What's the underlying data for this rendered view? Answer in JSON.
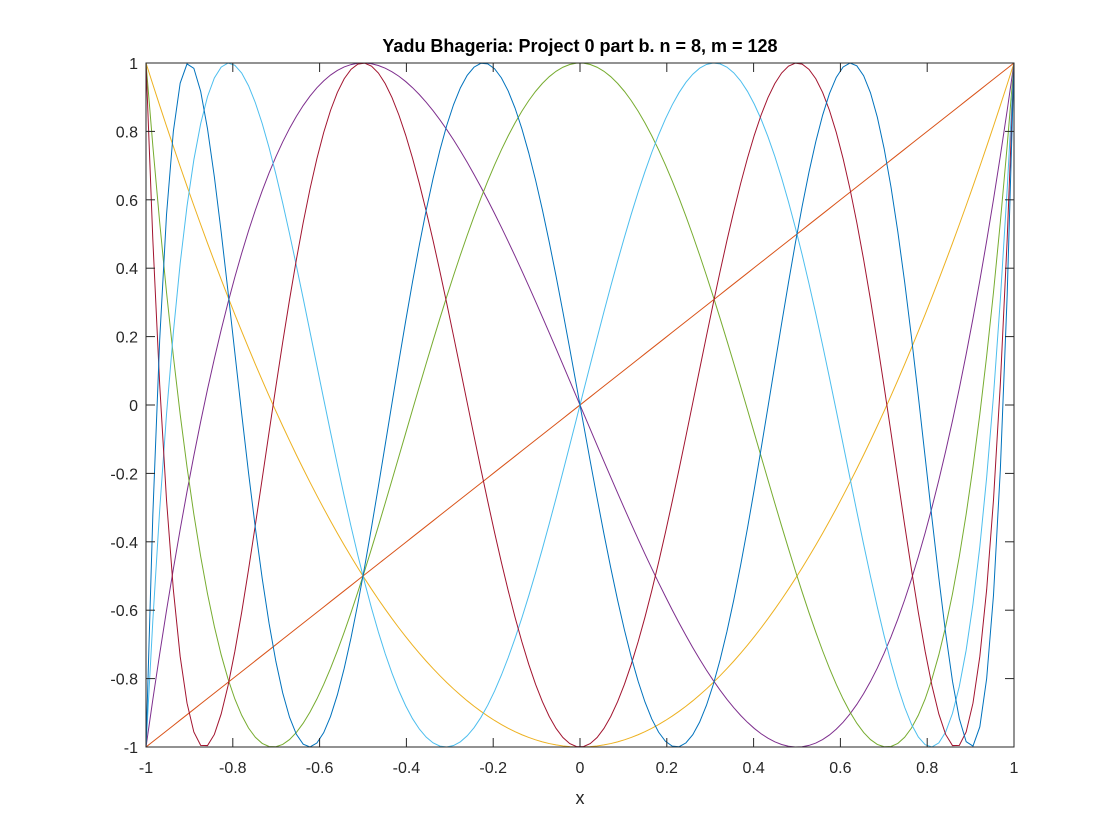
{
  "chart_data": {
    "type": "line",
    "title": "Yadu Bhageria: Project 0 part b. n = 8, m = 128",
    "xlabel": "x",
    "ylabel": "",
    "xlim": [
      -1,
      1
    ],
    "ylim": [
      -1,
      1
    ],
    "grid": false,
    "x_ticks": [
      -1,
      -0.8,
      -0.6,
      -0.4,
      -0.2,
      0,
      0.2,
      0.4,
      0.6,
      0.8,
      1
    ],
    "x_tick_labels": [
      "-1",
      "-0.8",
      "-0.6",
      "-0.4",
      "-0.2",
      "0",
      "0.2",
      "0.4",
      "0.6",
      "0.8",
      "1"
    ],
    "y_ticks": [
      -1,
      -0.8,
      -0.6,
      -0.4,
      -0.2,
      0,
      0.2,
      0.4,
      0.6,
      0.8,
      1
    ],
    "y_tick_labels": [
      "-1",
      "-0.8",
      "-0.6",
      "-0.4",
      "-0.2",
      "0",
      "0.2",
      "0.4",
      "0.6",
      "0.8",
      "1"
    ],
    "series": [
      {
        "degree": 0,
        "color": "#0072bd",
        "x": [
          -1,
          1
        ],
        "y": [
          1,
          1
        ]
      },
      {
        "degree": 1,
        "color": "#d95319",
        "x": [
          -1,
          1
        ],
        "y": [
          -1,
          1
        ]
      },
      {
        "degree": 2,
        "color": "#edb120",
        "x": [
          -1,
          -0.75,
          -0.5,
          -0.25,
          0,
          0.25,
          0.5,
          0.75,
          1
        ],
        "y": [
          1,
          0.125,
          -0.5,
          -0.875,
          -1,
          -0.875,
          -0.5,
          0.125,
          1
        ]
      },
      {
        "degree": 3,
        "color": "#7e2f8e",
        "x": [
          -1,
          -0.866,
          -0.5,
          0,
          0.5,
          0.866,
          1
        ],
        "y": [
          -1,
          0,
          1,
          0,
          -1,
          0,
          1
        ]
      },
      {
        "degree": 4,
        "color": "#77ac30",
        "x": [
          -1,
          -0.924,
          -0.707,
          -0.383,
          0,
          0.383,
          0.707,
          0.924,
          1
        ],
        "y": [
          1,
          0,
          -1,
          0,
          1,
          0,
          -1,
          0,
          1
        ]
      },
      {
        "degree": 5,
        "color": "#4dbeee",
        "x": [
          -1,
          -0.951,
          -0.809,
          -0.588,
          -0.309,
          0,
          0.309,
          0.588,
          0.809,
          0.951,
          1
        ],
        "y": [
          -1,
          0,
          1,
          0,
          -1,
          0,
          1,
          0,
          -1,
          0,
          1
        ]
      },
      {
        "degree": 6,
        "color": "#a2142f",
        "x": [
          -1,
          -0.966,
          -0.866,
          -0.707,
          -0.5,
          -0.259,
          0,
          0.259,
          0.5,
          0.707,
          0.866,
          0.966,
          1
        ],
        "y": [
          1,
          0,
          -1,
          0,
          1,
          0,
          -1,
          0,
          1,
          0,
          -1,
          0,
          1
        ]
      },
      {
        "degree": 7,
        "color": "#0072bd",
        "x": [
          -1,
          -0.975,
          -0.901,
          -0.782,
          -0.623,
          -0.434,
          -0.223,
          0,
          0.223,
          0.434,
          0.623,
          0.782,
          0.901,
          0.975,
          1
        ],
        "y": [
          -1,
          0,
          1,
          0,
          -1,
          0,
          1,
          0,
          -1,
          0,
          1,
          0,
          -1,
          0,
          1
        ]
      }
    ],
    "samples_per_curve": 128
  }
}
